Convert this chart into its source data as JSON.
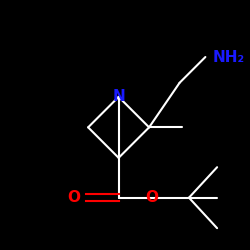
{
  "background_color": "#000000",
  "atom_color_N": "#1a1aff",
  "atom_color_O": "#ff0000",
  "bond_color": "#ffffff",
  "font_size_N": 11,
  "font_size_O": 11,
  "font_size_NH2": 11,
  "line_width": 1.5,
  "figsize": [
    2.5,
    2.5
  ],
  "dpi": 100,
  "xlim": [
    -2.5,
    2.5
  ],
  "ylim": [
    -3.0,
    1.8
  ]
}
